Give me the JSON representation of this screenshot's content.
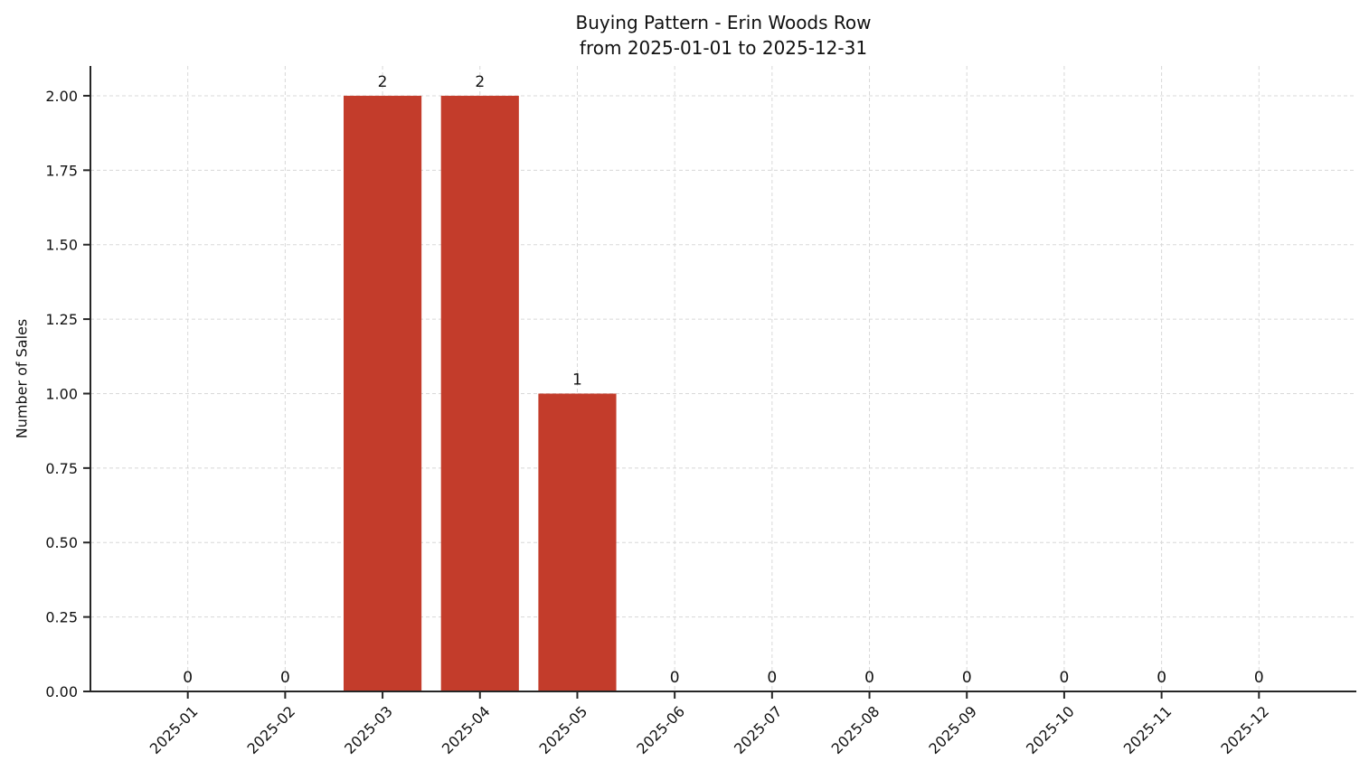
{
  "chart_data": {
    "type": "bar",
    "title": "Buying Pattern - Erin Woods Row",
    "subtitle": "from 2025-01-01 to 2025-12-31",
    "ylabel": "Number of Sales",
    "xlabel": "",
    "categories": [
      "2025-01",
      "2025-02",
      "2025-03",
      "2025-04",
      "2025-05",
      "2025-06",
      "2025-07",
      "2025-08",
      "2025-09",
      "2025-10",
      "2025-11",
      "2025-12"
    ],
    "values": [
      0,
      0,
      2,
      2,
      1,
      0,
      0,
      0,
      0,
      0,
      0,
      0
    ],
    "bar_labels": [
      "0",
      "0",
      "2",
      "2",
      "1",
      "0",
      "0",
      "0",
      "0",
      "0",
      "0",
      "0"
    ],
    "ylim": [
      0,
      2.1
    ],
    "ytick_values": [
      0,
      0.25,
      0.5,
      0.75,
      1.0,
      1.25,
      1.5,
      1.75,
      2.0
    ],
    "ytick_labels": [
      "0.00",
      "0.25",
      "0.50",
      "0.75",
      "1.00",
      "1.25",
      "1.50",
      "1.75",
      "2.00"
    ],
    "x_tick_rotation": 45,
    "grid": true,
    "legend_position": "none",
    "bar_color": "#c33c2b",
    "grid_color": "#d8d8d8",
    "axis_color": "#262626",
    "text_color": "#111111"
  }
}
